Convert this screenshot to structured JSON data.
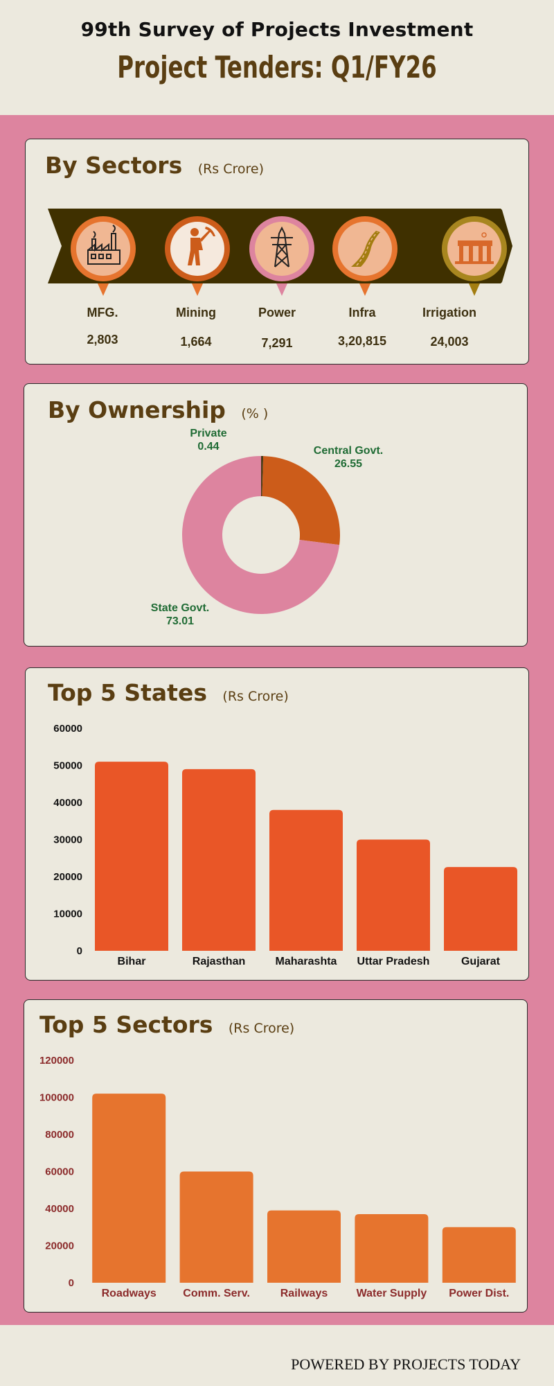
{
  "header": {
    "survey": "99th Survey of Projects Investment",
    "title": "Project Tenders: Q1/FY26"
  },
  "sectors_panel": {
    "title": "By Sectors",
    "unit": "(Rs Crore)",
    "items": [
      {
        "name": "MFG.",
        "value": "2,803",
        "icon": "factory-icon"
      },
      {
        "name": "Mining",
        "value": "1,664",
        "icon": "miner-icon"
      },
      {
        "name": "Power",
        "value": "7,291",
        "icon": "power-tower-icon"
      },
      {
        "name": "Infra",
        "value": "3,20,815",
        "icon": "road-icon"
      },
      {
        "name": "Irrigation",
        "value": "24,003",
        "icon": "dam-icon"
      }
    ]
  },
  "ownership_panel": {
    "title": "By Ownership",
    "unit": "(% )"
  },
  "states_panel": {
    "title": "Top 5 States",
    "unit": "(Rs Crore)"
  },
  "top_sectors_panel": {
    "title": "Top 5 Sectors",
    "unit": "(Rs Crore)"
  },
  "footer": {
    "text": "POWERED BY PROJECTS TODAY"
  },
  "colors": {
    "brown": "#5a3e12",
    "pink": "#dd849f",
    "cream": "#ece9de",
    "states_bar": "#e95627",
    "sectors_bar": "#e6742e",
    "central": "#cc5c1a",
    "private": "#4a3a14",
    "green_label": "#1f6b34",
    "maroon_label": "#8b2a2a"
  },
  "chart_data": [
    {
      "type": "pie",
      "labels": [
        "Private",
        "Central Govt.",
        "State Govt."
      ],
      "values": [
        0.44,
        26.55,
        73.01
      ],
      "colors": [
        "#4a3a14",
        "#cc5c1a",
        "#dd849f"
      ]
    },
    {
      "type": "bar",
      "categories": [
        "Bihar",
        "Rajasthan",
        "Maharashta",
        "Uttar Pradesh",
        "Gujarat"
      ],
      "values": [
        51000,
        49000,
        38000,
        30000,
        22600
      ],
      "ylim": [
        0,
        60000
      ],
      "yticks": [
        "0",
        "10000",
        "20000",
        "30000",
        "40000",
        "50000",
        "60000"
      ]
    },
    {
      "type": "bar",
      "categories": [
        "Roadways",
        "Comm. Serv.",
        "Railways",
        "Water Supply",
        "Power Dist."
      ],
      "values": [
        102000,
        60000,
        39000,
        37000,
        30000
      ],
      "ylim": [
        0,
        120000
      ],
      "yticks": [
        "0",
        "20000",
        "40000",
        "60000",
        "80000",
        "100000",
        "120000"
      ]
    }
  ]
}
